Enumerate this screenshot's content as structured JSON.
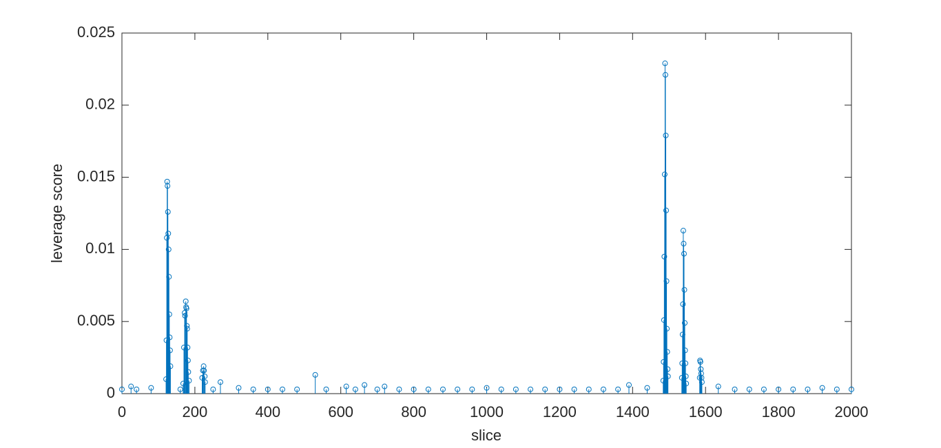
{
  "chart_data": {
    "type": "stem",
    "xlabel": "slice",
    "ylabel": "leverage score",
    "color": "#0072BD",
    "xlim": [
      0,
      2000
    ],
    "xticks": [
      0,
      200,
      400,
      600,
      800,
      1000,
      1200,
      1400,
      1600,
      1800,
      2000
    ],
    "ylim": [
      0,
      0.025
    ],
    "yticks": [
      0,
      0.005,
      0.01,
      0.015,
      0.02,
      0.025
    ],
    "x": [
      121,
      122,
      123,
      124,
      125,
      126,
      127,
      128,
      129,
      130,
      131,
      132,
      133,
      168,
      170,
      172,
      173,
      175,
      176,
      177,
      178,
      179,
      180,
      181,
      182,
      184,
      220,
      222,
      224,
      225,
      227,
      228,
      270,
      530,
      615,
      665,
      1390,
      1484,
      1485,
      1486,
      1487,
      1488,
      1489,
      1490,
      1491,
      1492,
      1493,
      1494,
      1495,
      1496,
      1497,
      1535,
      1536,
      1537,
      1538,
      1539,
      1540,
      1541,
      1542,
      1543,
      1544,
      1545,
      1546,
      1547,
      1584,
      1585,
      1586,
      1587,
      1588,
      1589,
      1590,
      1635,
      0,
      25,
      40,
      80,
      160,
      250,
      320,
      360,
      400,
      440,
      480,
      560,
      640,
      700,
      720,
      760,
      800,
      840,
      880,
      920,
      960,
      1000,
      1040,
      1080,
      1120,
      1160,
      1200,
      1240,
      1280,
      1320,
      1360,
      1440,
      1680,
      1720,
      1760,
      1800,
      1840,
      1880,
      1920,
      1960,
      2000
    ],
    "values": [
      0.001,
      0.0037,
      0.0108,
      0.0147,
      0.0144,
      0.0126,
      0.0111,
      0.01,
      0.0081,
      0.0055,
      0.0039,
      0.003,
      0.0019,
      0.0007,
      0.0032,
      0.0056,
      0.0054,
      0.0064,
      0.006,
      0.0059,
      0.0047,
      0.0045,
      0.0032,
      0.0023,
      0.0015,
      0.0009,
      0.0011,
      0.0016,
      0.0019,
      0.0016,
      0.0012,
      0.0008,
      0.0008,
      0.0013,
      0.0005,
      0.0006,
      0.0006,
      0.0009,
      0.0022,
      0.0051,
      0.0095,
      0.0152,
      0.0229,
      0.0221,
      0.0179,
      0.0127,
      0.0078,
      0.0045,
      0.0029,
      0.0017,
      0.0012,
      0.0011,
      0.0021,
      0.0041,
      0.0062,
      0.0113,
      0.0104,
      0.0097,
      0.0072,
      0.0049,
      0.003,
      0.0021,
      0.0012,
      0.0007,
      0.0011,
      0.0023,
      0.0022,
      0.0017,
      0.0014,
      0.0011,
      0.0008,
      0.0005,
      0.0003,
      0.0005,
      0.0003,
      0.0004,
      0.0003,
      0.0003,
      0.0004,
      0.0003,
      0.0003,
      0.0003,
      0.0003,
      0.0003,
      0.0003,
      0.0003,
      0.0005,
      0.0003,
      0.0003,
      0.0003,
      0.0003,
      0.0003,
      0.0003,
      0.0004,
      0.0003,
      0.0003,
      0.0003,
      0.0003,
      0.0003,
      0.0003,
      0.0003,
      0.0003,
      0.0003,
      0.0004,
      0.0003,
      0.0003,
      0.0003,
      0.0003,
      0.0003,
      0.0003,
      0.0004,
      0.0003,
      0.0003
    ]
  }
}
